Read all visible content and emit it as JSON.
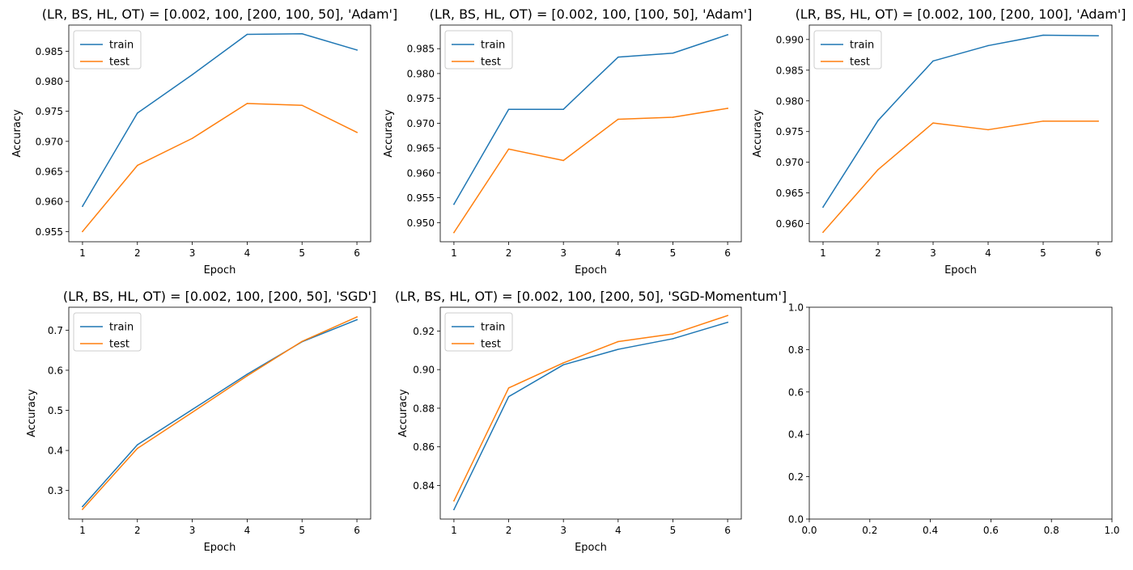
{
  "colors": {
    "train": "#1f77b4",
    "test": "#ff7f0e",
    "axis": "#000000",
    "legend_border": "#cccccc"
  },
  "chart_data": [
    {
      "type": "line",
      "title": "(LR, BS, HL, OT) = [0.002, 100, [200, 100, 50], 'Adam']",
      "xlabel": "Epoch",
      "ylabel": "Accuracy",
      "x": [
        1,
        2,
        3,
        4,
        5,
        6
      ],
      "xticks": [
        "1",
        "2",
        "3",
        "4",
        "5",
        "6"
      ],
      "xlim": [
        0.75,
        6.25
      ],
      "yticks": [
        "0.955",
        "0.960",
        "0.965",
        "0.970",
        "0.975",
        "0.980",
        "0.985"
      ],
      "ylim": [
        0.9533,
        0.98935
      ],
      "legend": "upper left",
      "grid": false,
      "series": [
        {
          "name": "train",
          "values": [
            0.9592,
            0.9747,
            0.9811,
            0.9878,
            0.9879,
            0.9852
          ]
        },
        {
          "name": "test",
          "values": [
            0.955,
            0.966,
            0.9705,
            0.9763,
            0.976,
            0.9715
          ]
        }
      ]
    },
    {
      "type": "line",
      "title": "(LR, BS, HL, OT) = [0.002, 100, [100, 50], 'Adam']",
      "xlabel": "Epoch",
      "ylabel": "Accuracy",
      "x": [
        1,
        2,
        3,
        4,
        5,
        6
      ],
      "xticks": [
        "1",
        "2",
        "3",
        "4",
        "5",
        "6"
      ],
      "xlim": [
        0.75,
        6.25
      ],
      "yticks": [
        "0.950",
        "0.955",
        "0.960",
        "0.965",
        "0.970",
        "0.975",
        "0.980",
        "0.985"
      ],
      "ylim": [
        0.94615,
        0.98975
      ],
      "legend": "upper left",
      "grid": false,
      "series": [
        {
          "name": "train",
          "values": [
            0.9537,
            0.9728,
            0.9728,
            0.9833,
            0.9841,
            0.9878
          ]
        },
        {
          "name": "test",
          "values": [
            0.948,
            0.9648,
            0.9625,
            0.9708,
            0.9712,
            0.973
          ]
        }
      ]
    },
    {
      "type": "line",
      "title": "(LR, BS, HL, OT) = [0.002, 100, [200, 100], 'Adam']",
      "xlabel": "Epoch",
      "ylabel": "Accuracy",
      "x": [
        1,
        2,
        3,
        4,
        5,
        6
      ],
      "xticks": [
        "1",
        "2",
        "3",
        "4",
        "5",
        "6"
      ],
      "xlim": [
        0.75,
        6.25
      ],
      "yticks": [
        "0.960",
        "0.965",
        "0.970",
        "0.975",
        "0.980",
        "0.985",
        "0.990"
      ],
      "ylim": [
        0.95705,
        0.99235
      ],
      "legend": "upper left",
      "grid": false,
      "series": [
        {
          "name": "train",
          "values": [
            0.9627,
            0.9768,
            0.9865,
            0.989,
            0.9907,
            0.9906
          ]
        },
        {
          "name": "test",
          "values": [
            0.9586,
            0.9688,
            0.9764,
            0.9753,
            0.9767,
            0.9767
          ]
        }
      ]
    },
    {
      "type": "line",
      "title": "(LR, BS, HL, OT) = [0.002, 100, [200, 50], 'SGD']",
      "xlabel": "Epoch",
      "ylabel": "Accuracy",
      "x": [
        1,
        2,
        3,
        4,
        5,
        6
      ],
      "xticks": [
        "1",
        "2",
        "3",
        "4",
        "5",
        "6"
      ],
      "xlim": [
        0.75,
        6.25
      ],
      "yticks": [
        "0.3",
        "0.4",
        "0.5",
        "0.6",
        "0.7"
      ],
      "ylim": [
        0.2288,
        0.7572
      ],
      "legend": "upper left",
      "grid": false,
      "series": [
        {
          "name": "train",
          "values": [
            0.26,
            0.414,
            0.502,
            0.59,
            0.671,
            0.726
          ]
        },
        {
          "name": "test",
          "values": [
            0.253,
            0.405,
            0.495,
            0.586,
            0.672,
            0.733
          ]
        }
      ]
    },
    {
      "type": "line",
      "title": "(LR, BS, HL, OT) = [0.002, 100, [200, 50], 'SGD-Momentum']",
      "xlabel": "Epoch",
      "ylabel": "Accuracy",
      "x": [
        1,
        2,
        3,
        4,
        5,
        6
      ],
      "xticks": [
        "1",
        "2",
        "3",
        "4",
        "5",
        "6"
      ],
      "xlim": [
        0.75,
        6.25
      ],
      "yticks": [
        "0.84",
        "0.86",
        "0.88",
        "0.90",
        "0.92"
      ],
      "ylim": [
        0.8226,
        0.9323
      ],
      "legend": "upper left",
      "grid": false,
      "series": [
        {
          "name": "train",
          "values": [
            0.8275,
            0.886,
            0.9025,
            0.9105,
            0.916,
            0.9245
          ]
        },
        {
          "name": "test",
          "values": [
            0.832,
            0.8905,
            0.9035,
            0.9145,
            0.9185,
            0.928
          ]
        }
      ]
    },
    {
      "type": "line",
      "title": "",
      "xlabel": "",
      "ylabel": "",
      "x": [],
      "xticks": [
        "0.0",
        "0.2",
        "0.4",
        "0.6",
        "0.8",
        "1.0"
      ],
      "xlim": [
        0,
        1
      ],
      "yticks": [
        "0.0",
        "0.2",
        "0.4",
        "0.6",
        "0.8",
        "1.0"
      ],
      "ylim": [
        0,
        1
      ],
      "legend": "none",
      "grid": false,
      "series": []
    }
  ]
}
